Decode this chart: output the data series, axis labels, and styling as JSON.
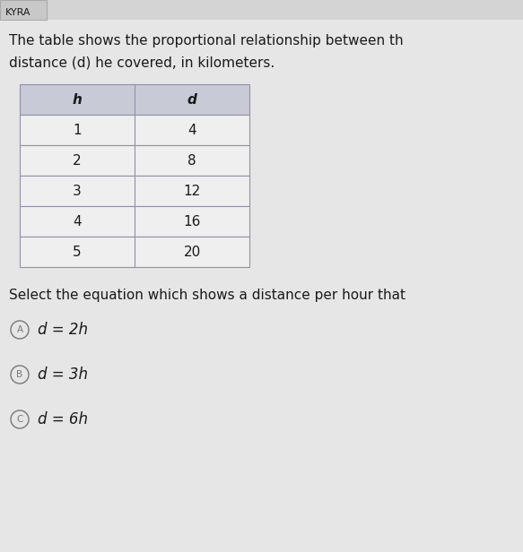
{
  "title_tab": "KYRA",
  "paragraph1": "The table shows the proportional relationship between th",
  "paragraph2": "distance (d) he covered, in kilometers.",
  "table_headers": [
    "h",
    "d"
  ],
  "table_rows": [
    [
      "1",
      "4"
    ],
    [
      "2",
      "8"
    ],
    [
      "3",
      "12"
    ],
    [
      "4",
      "16"
    ],
    [
      "5",
      "20"
    ]
  ],
  "question_text": "Select the equation which shows a distance per hour that",
  "options": [
    {
      "label": "A",
      "text": "d = 2h"
    },
    {
      "label": "B",
      "text": "d = 3h"
    },
    {
      "label": "C",
      "text": "d = 6h"
    }
  ],
  "bg_color": "#d4d4d4",
  "tab_bg": "#c8c8c8",
  "content_bg": "#e6e6e6",
  "table_header_bg": "#c8cad6",
  "table_row_bg": "#efefef",
  "table_border_color": "#9090a8",
  "text_color": "#1a1a1a",
  "option_circle_color": "#777777",
  "font_size_tab": 8,
  "font_size_para": 11,
  "font_size_table": 11,
  "font_size_question": 11,
  "font_size_option": 12
}
